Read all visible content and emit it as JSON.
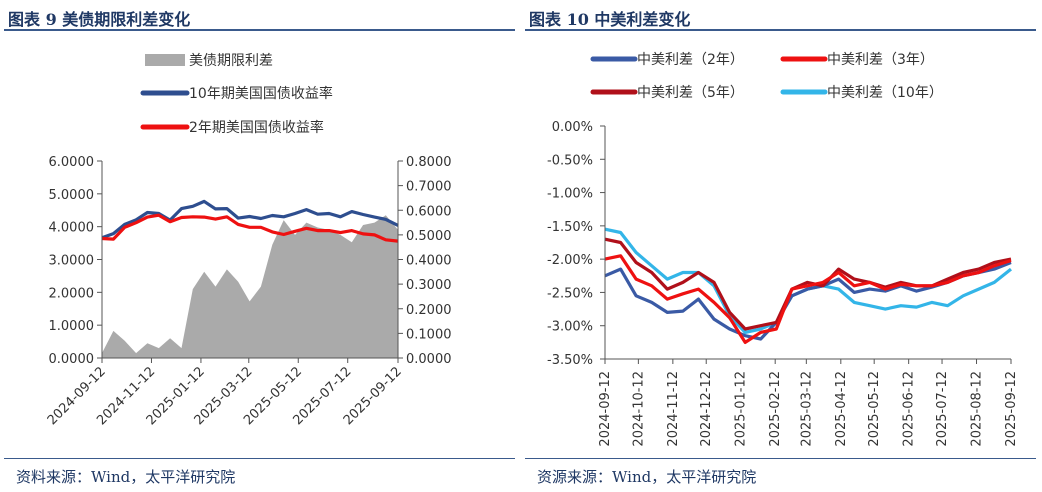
{
  "left": {
    "title": "图表 9 美债期限利差变化",
    "source": "资料来源：Wind，太平洋研究院"
  },
  "right": {
    "title": "图表 10 中美利差变化",
    "source": "资源来源：Wind，太平洋研究院"
  },
  "chart_data": [
    {
      "type": "line",
      "title": "",
      "legend_position": "top",
      "grid": false,
      "x_dates": [
        "2024-09-12",
        "2024-09-26",
        "2024-10-10",
        "2024-10-24",
        "2024-11-07",
        "2024-11-21",
        "2024-12-05",
        "2024-12-19",
        "2025-01-02",
        "2025-01-16",
        "2025-01-30",
        "2025-02-13",
        "2025-02-27",
        "2025-03-13",
        "2025-03-27",
        "2025-04-10",
        "2025-04-24",
        "2025-05-08",
        "2025-05-22",
        "2025-06-05",
        "2025-06-19",
        "2025-07-03",
        "2025-07-17",
        "2025-07-31",
        "2025-08-14",
        "2025-08-28",
        "2025-09-12"
      ],
      "x_tick_labels": [
        "2024-09-12",
        "2024-11-12",
        "2025-01-12",
        "2025-03-12",
        "2025-05-12",
        "2025-07-12",
        "2025-09-12"
      ],
      "y_left": {
        "range": [
          0,
          6
        ],
        "ticks": [
          "0.0000",
          "1.0000",
          "2.0000",
          "3.0000",
          "4.0000",
          "5.0000",
          "6.0000"
        ]
      },
      "y_right": {
        "range": [
          0,
          0.8
        ],
        "ticks": [
          "0.0000",
          "0.1000",
          "0.2000",
          "0.3000",
          "0.4000",
          "0.5000",
          "0.6000",
          "0.7000",
          "0.8000"
        ]
      },
      "series": [
        {
          "name": "美债期限利差",
          "kind": "area",
          "axis": "right",
          "color": "#aaaaaa",
          "values": [
            0.02,
            0.11,
            0.07,
            0.02,
            0.06,
            0.04,
            0.08,
            0.04,
            0.28,
            0.35,
            0.29,
            0.36,
            0.31,
            0.23,
            0.29,
            0.46,
            0.56,
            0.5,
            0.55,
            0.53,
            0.52,
            0.5,
            0.47,
            0.54,
            0.55,
            0.58,
            0.52
          ]
        },
        {
          "name": "10年期美国国债收益率",
          "kind": "line",
          "axis": "left",
          "color": "#2e4e8f",
          "values": [
            3.66,
            3.79,
            4.07,
            4.21,
            4.43,
            4.4,
            4.2,
            4.55,
            4.62,
            4.77,
            4.54,
            4.55,
            4.26,
            4.31,
            4.25,
            4.34,
            4.3,
            4.4,
            4.52,
            4.38,
            4.4,
            4.3,
            4.46,
            4.37,
            4.29,
            4.22,
            4.04
          ]
        },
        {
          "name": "2年期美国国债收益率",
          "kind": "line",
          "axis": "left",
          "color": "#ee1111",
          "values": [
            3.64,
            3.62,
            3.98,
            4.12,
            4.29,
            4.35,
            4.15,
            4.28,
            4.3,
            4.29,
            4.23,
            4.3,
            4.07,
            3.98,
            3.98,
            3.84,
            3.76,
            3.86,
            3.95,
            3.88,
            3.88,
            3.82,
            3.88,
            3.78,
            3.75,
            3.6,
            3.56
          ]
        }
      ]
    },
    {
      "type": "line",
      "title": "",
      "legend_position": "top",
      "grid": false,
      "x_dates": [
        "2024-09-12",
        "2024-09-26",
        "2024-10-10",
        "2024-10-24",
        "2024-11-07",
        "2024-11-21",
        "2024-12-05",
        "2024-12-19",
        "2025-01-02",
        "2025-01-16",
        "2025-01-30",
        "2025-02-13",
        "2025-02-27",
        "2025-03-13",
        "2025-03-27",
        "2025-04-10",
        "2025-04-24",
        "2025-05-08",
        "2025-05-22",
        "2025-06-05",
        "2025-06-19",
        "2025-07-03",
        "2025-07-17",
        "2025-07-31",
        "2025-08-14",
        "2025-08-28",
        "2025-09-12"
      ],
      "x_tick_labels": [
        "2024-09-12",
        "2024-10-12",
        "2024-11-12",
        "2024-12-12",
        "2025-01-12",
        "2025-02-12",
        "2025-03-12",
        "2025-04-12",
        "2025-05-12",
        "2025-06-12",
        "2025-07-12",
        "2025-08-12",
        "2025-09-12"
      ],
      "y_axis": {
        "range": [
          -3.5,
          0
        ],
        "ticks": [
          "0.00%",
          "-0.50%",
          "-1.00%",
          "-1.50%",
          "-2.00%",
          "-2.50%",
          "-3.00%",
          "-3.50%"
        ]
      },
      "series": [
        {
          "name": "中美利差（2年）",
          "color": "#3a5aa5",
          "values": [
            -2.25,
            -2.15,
            -2.55,
            -2.65,
            -2.8,
            -2.78,
            -2.6,
            -2.9,
            -3.05,
            -3.15,
            -3.2,
            -2.95,
            -2.55,
            -2.45,
            -2.4,
            -2.3,
            -2.5,
            -2.45,
            -2.48,
            -2.4,
            -2.48,
            -2.42,
            -2.35,
            -2.25,
            -2.2,
            -2.15,
            -2.05
          ]
        },
        {
          "name": "中美利差（3年）",
          "color": "#ee1111",
          "values": [
            -2.0,
            -1.95,
            -2.3,
            -2.4,
            -2.6,
            -2.52,
            -2.45,
            -2.65,
            -2.88,
            -3.25,
            -3.1,
            -3.05,
            -2.45,
            -2.4,
            -2.35,
            -2.2,
            -2.4,
            -2.35,
            -2.45,
            -2.38,
            -2.4,
            -2.4,
            -2.35,
            -2.25,
            -2.2,
            -2.1,
            -2.02
          ]
        },
        {
          "name": "中美利差（5年）",
          "color": "#b0101a",
          "values": [
            -1.7,
            -1.75,
            -2.05,
            -2.2,
            -2.45,
            -2.35,
            -2.2,
            -2.35,
            -2.8,
            -3.05,
            -3.0,
            -2.95,
            -2.45,
            -2.35,
            -2.4,
            -2.15,
            -2.3,
            -2.35,
            -2.42,
            -2.35,
            -2.4,
            -2.4,
            -2.3,
            -2.2,
            -2.15,
            -2.05,
            -2.0
          ]
        },
        {
          "name": "中美利差（10年）",
          "color": "#33b5e8",
          "values": [
            -1.55,
            -1.6,
            -1.9,
            -2.1,
            -2.3,
            -2.2,
            -2.2,
            -2.4,
            -2.85,
            -3.1,
            -3.05,
            -2.95,
            -2.55,
            -2.45,
            -2.4,
            -2.45,
            -2.65,
            -2.7,
            -2.75,
            -2.7,
            -2.72,
            -2.65,
            -2.7,
            -2.55,
            -2.45,
            -2.35,
            -2.15
          ]
        }
      ]
    }
  ]
}
